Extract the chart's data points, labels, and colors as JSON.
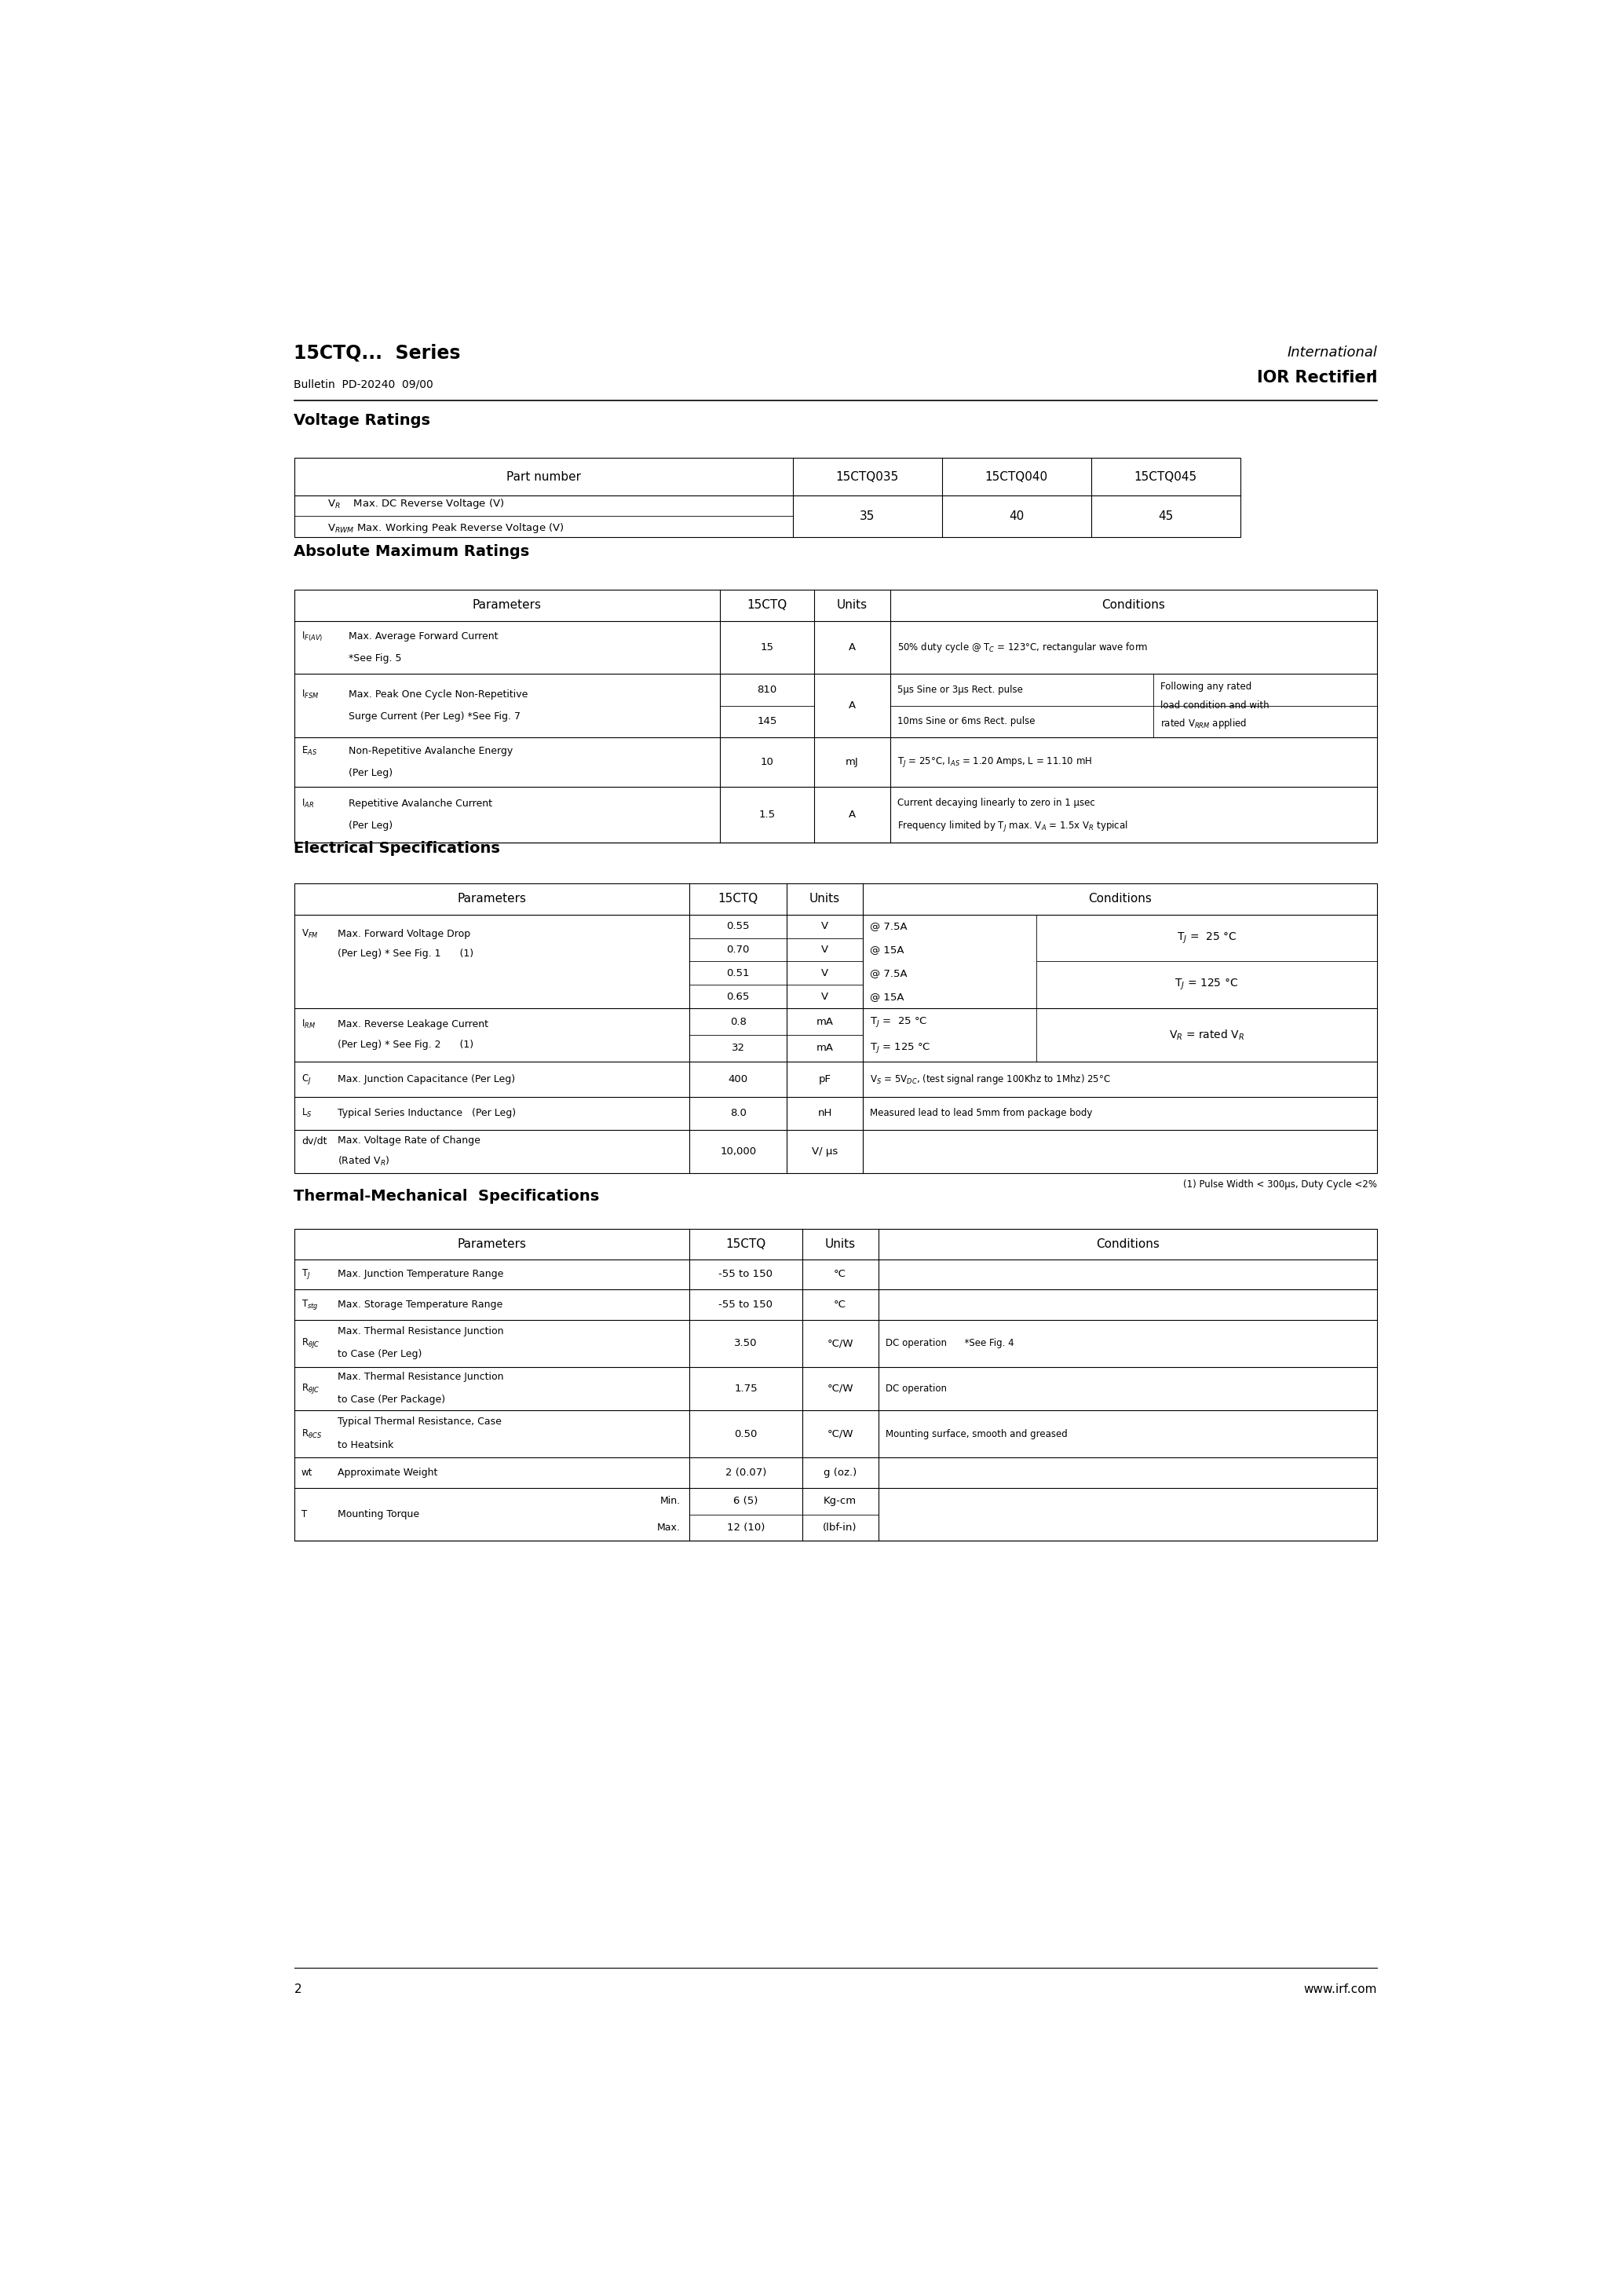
{
  "page_title": "15CTQ...  Series",
  "bulletin": "Bulletin  PD-20240  09/00",
  "company_line1": "International",
  "company_line2": "IOR Rectifier",
  "page_number": "2",
  "website": "www.irf.com",
  "voltage_section_title": "Voltage Ratings",
  "abs_section_title": "Absolute Maximum Ratings",
  "elec_section_title": "Electrical Specifications",
  "elec_footnote": "(1) Pulse Width < 300μs, Duty Cycle <2%",
  "thermal_section_title": "Thermal-Mechanical  Specifications"
}
